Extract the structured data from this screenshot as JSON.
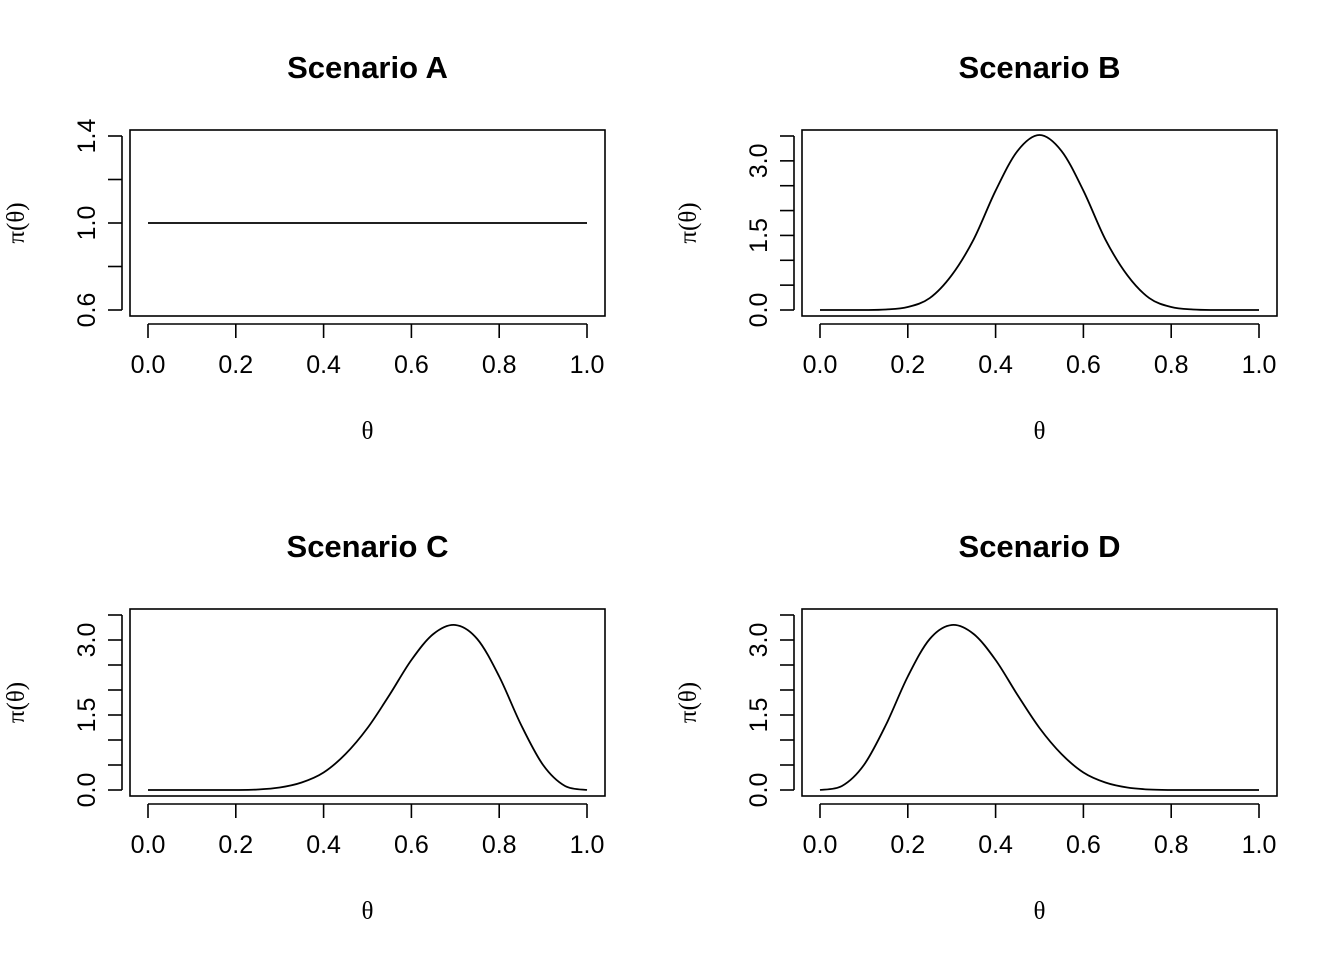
{
  "chart_data": [
    {
      "type": "line",
      "title": "Scenario A",
      "xlabel": "θ",
      "ylabel": "π(θ)",
      "xlim": [
        0.0,
        1.0
      ],
      "ylim": [
        0.6,
        1.4
      ],
      "x_ticks": [
        "0.0",
        "0.2",
        "0.4",
        "0.6",
        "0.8",
        "1.0"
      ],
      "y_ticks": [
        0.6,
        0.8,
        1.0,
        1.2,
        1.4
      ],
      "y_tick_labels": [
        "0.6",
        "",
        "1.0",
        "",
        "1.4"
      ],
      "grid": false,
      "series": [
        {
          "x": [
            0.0,
            0.1,
            0.2,
            0.3,
            0.4,
            0.5,
            0.6,
            0.7,
            0.8,
            0.9,
            1.0
          ],
          "y": [
            1.0,
            1.0,
            1.0,
            1.0,
            1.0,
            1.0,
            1.0,
            1.0,
            1.0,
            1.0,
            1.0
          ]
        }
      ]
    },
    {
      "type": "line",
      "title": "Scenario B",
      "xlabel": "θ",
      "ylabel": "π(θ)",
      "xlim": [
        0.0,
        1.0
      ],
      "ylim": [
        0.0,
        3.5
      ],
      "x_ticks": [
        "0.0",
        "0.2",
        "0.4",
        "0.6",
        "0.8",
        "1.0"
      ],
      "y_ticks": [
        0.0,
        0.5,
        1.0,
        1.5,
        2.0,
        2.5,
        3.0,
        3.5
      ],
      "y_tick_labels": [
        "0.0",
        "",
        "",
        "1.5",
        "",
        "",
        "3.0",
        ""
      ],
      "grid": false,
      "series": [
        {
          "x": [
            0.0,
            0.05,
            0.1,
            0.15,
            0.2,
            0.25,
            0.3,
            0.35,
            0.4,
            0.45,
            0.5,
            0.55,
            0.6,
            0.65,
            0.7,
            0.75,
            0.8,
            0.85,
            0.9,
            0.95,
            1.0
          ],
          "y": [
            0.0,
            0.0,
            0.0,
            0.01,
            0.06,
            0.24,
            0.7,
            1.42,
            2.4,
            3.2,
            3.52,
            3.2,
            2.4,
            1.42,
            0.7,
            0.24,
            0.06,
            0.01,
            0.0,
            0.0,
            0.0
          ]
        }
      ]
    },
    {
      "type": "line",
      "title": "Scenario C",
      "xlabel": "θ",
      "ylabel": "π(θ)",
      "xlim": [
        0.0,
        1.0
      ],
      "ylim": [
        0.0,
        3.5
      ],
      "x_ticks": [
        "0.0",
        "0.2",
        "0.4",
        "0.6",
        "0.8",
        "1.0"
      ],
      "y_ticks": [
        0.0,
        0.5,
        1.0,
        1.5,
        2.0,
        2.5,
        3.0,
        3.5
      ],
      "y_tick_labels": [
        "0.0",
        "",
        "",
        "1.5",
        "",
        "",
        "3.0",
        ""
      ],
      "grid": false,
      "series": [
        {
          "x": [
            0.0,
            0.05,
            0.1,
            0.15,
            0.2,
            0.25,
            0.3,
            0.35,
            0.4,
            0.45,
            0.5,
            0.55,
            0.6,
            0.65,
            0.7,
            0.75,
            0.8,
            0.85,
            0.9,
            0.95,
            1.0
          ],
          "y": [
            0.0,
            0.0,
            0.0,
            0.0,
            0.0,
            0.01,
            0.05,
            0.15,
            0.35,
            0.72,
            1.24,
            1.9,
            2.6,
            3.12,
            3.3,
            3.02,
            2.27,
            1.3,
            0.5,
            0.08,
            0.0
          ]
        }
      ]
    },
    {
      "type": "line",
      "title": "Scenario D",
      "xlabel": "θ",
      "ylabel": "π(θ)",
      "xlim": [
        0.0,
        1.0
      ],
      "ylim": [
        0.0,
        3.5
      ],
      "x_ticks": [
        "0.0",
        "0.2",
        "0.4",
        "0.6",
        "0.8",
        "1.0"
      ],
      "y_ticks": [
        0.0,
        0.5,
        1.0,
        1.5,
        2.0,
        2.5,
        3.0,
        3.5
      ],
      "y_tick_labels": [
        "0.0",
        "",
        "",
        "1.5",
        "",
        "",
        "3.0",
        ""
      ],
      "grid": false,
      "series": [
        {
          "x": [
            0.0,
            0.05,
            0.1,
            0.15,
            0.2,
            0.25,
            0.3,
            0.35,
            0.4,
            0.45,
            0.5,
            0.55,
            0.6,
            0.65,
            0.7,
            0.75,
            0.8,
            0.85,
            0.9,
            0.95,
            1.0
          ],
          "y": [
            0.0,
            0.08,
            0.5,
            1.3,
            2.27,
            3.02,
            3.3,
            3.12,
            2.6,
            1.9,
            1.24,
            0.72,
            0.35,
            0.15,
            0.05,
            0.01,
            0.0,
            0.0,
            0.0,
            0.0,
            0.0
          ]
        }
      ]
    }
  ]
}
